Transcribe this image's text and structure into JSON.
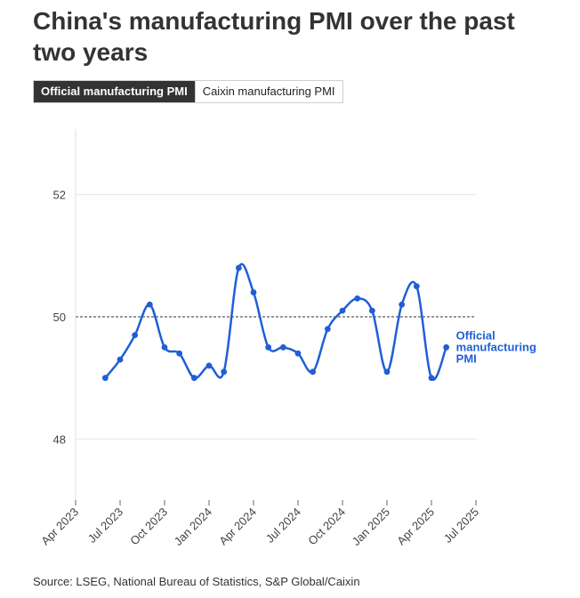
{
  "title": "China's manufacturing PMI over the past two years",
  "tabs": [
    {
      "label": "Official manufacturing PMI",
      "selected": true
    },
    {
      "label": "Caixin manufacturing PMI",
      "selected": false
    }
  ],
  "source": "Source: LSEG, National Bureau of Statistics, S&P Global/Caixin",
  "chart_data": {
    "type": "line",
    "title": "China's manufacturing PMI over the past two years",
    "xlabel": "",
    "ylabel": "",
    "ylim": [
      47,
      53
    ],
    "yticks": [
      48,
      50,
      52
    ],
    "reference_line": 50,
    "x_tick_labels": [
      "Apr 2023",
      "Jul 2023",
      "Oct 2023",
      "Jan 2024",
      "Apr 2024",
      "Jul 2024",
      "Oct 2024",
      "Jan 2025",
      "Apr 2025",
      "Jul 2025"
    ],
    "x": [
      "2023-06",
      "2023-07",
      "2023-08",
      "2023-09",
      "2023-10",
      "2023-11",
      "2023-12",
      "2024-01",
      "2024-02",
      "2024-03",
      "2024-04",
      "2024-05",
      "2024-06",
      "2024-07",
      "2024-08",
      "2024-09",
      "2024-10",
      "2024-11",
      "2024-12",
      "2025-01",
      "2025-02",
      "2025-03",
      "2025-04",
      "2025-05"
    ],
    "series": [
      {
        "name": "Official manufacturing PMI",
        "color": "#1f5fd6",
        "values": [
          49.0,
          49.3,
          49.7,
          50.2,
          49.5,
          49.4,
          49.0,
          49.2,
          49.1,
          50.8,
          50.4,
          49.5,
          49.5,
          49.4,
          49.1,
          49.8,
          50.1,
          50.3,
          50.1,
          49.1,
          50.2,
          50.5,
          49.0,
          49.5
        ]
      }
    ],
    "legend": "inline-right"
  }
}
